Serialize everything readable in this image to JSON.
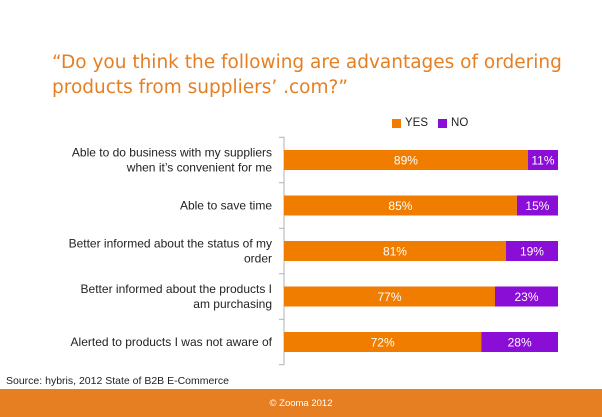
{
  "title": "“Do you think the following are advantages of ordering products from suppliers’ .com?”",
  "source": "Source: hybris, 2012 State of B2B E-Commerce",
  "footer": "© Zooma 2012",
  "colors": {
    "yes": "#f07d00",
    "no": "#8a0ed6",
    "accent": "#e67e22"
  },
  "chart_data": {
    "type": "bar",
    "orientation": "horizontal",
    "stacked": true,
    "categories": [
      [
        "Able to do business with my suppliers",
        "when it’s convenient for me"
      ],
      [
        "Able to save time"
      ],
      [
        "Better informed about the status of my",
        "order"
      ],
      [
        "Better informed about the products I",
        "am purchasing"
      ],
      [
        "Alerted to products I was not aware of"
      ]
    ],
    "series": [
      {
        "name": "YES",
        "values": [
          89,
          85,
          81,
          77,
          72
        ],
        "labels": [
          "89%",
          "85%",
          "81%",
          "77%",
          "72%"
        ]
      },
      {
        "name": "NO",
        "values": [
          11,
          15,
          19,
          23,
          28
        ],
        "labels": [
          "11%",
          "15%",
          "19%",
          "23%",
          "28%"
        ]
      }
    ],
    "xlim": [
      0,
      100
    ],
    "legend_position": "top-right",
    "grid": false
  }
}
